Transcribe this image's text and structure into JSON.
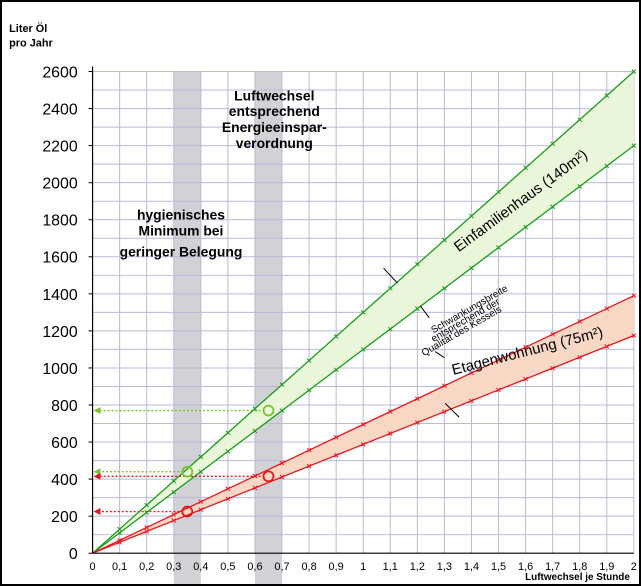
{
  "chart_data": {
    "type": "line",
    "ylabel": [
      "Liter Öl",
      "pro Jahr"
    ],
    "xlabel": "Luftwechsel je Stunde",
    "xlim": [
      0,
      2
    ],
    "ylim": [
      0,
      2600
    ],
    "xticks": [
      "0",
      "0,1",
      "0,2",
      "0,3",
      "0,4",
      "0,5",
      "0,6",
      "0,7",
      "0,8",
      "0,9",
      "1",
      "1,1",
      "1,2",
      "1,3",
      "1,4",
      "1,5",
      "1,6",
      "1,7",
      "1,8",
      "1,9",
      "2"
    ],
    "yticks": [
      "0",
      "200",
      "400",
      "600",
      "800",
      "1000",
      "1200",
      "1400",
      "1600",
      "1800",
      "2000",
      "2200",
      "2400",
      "2600"
    ],
    "grid": true,
    "shaded_bands": [
      {
        "x": [
          0.3,
          0.4
        ],
        "label": [
          "hygienisches",
          "Minimum bei",
          "geringer Belegung"
        ]
      },
      {
        "x": [
          0.6,
          0.7
        ],
        "label": [
          "Luftwechsel",
          "entsprechend",
          "Energieeinspar-",
          "verordnung"
        ]
      }
    ],
    "series": [
      {
        "name": "Einfamilienhaus (140m²)",
        "bound": "upper",
        "color": "#1a9a1a",
        "x": [
          0,
          2
        ],
        "y": [
          0,
          2600
        ]
      },
      {
        "name": "Einfamilienhaus (140m²)",
        "bound": "lower",
        "color": "#1a9a1a",
        "x": [
          0,
          2
        ],
        "y": [
          0,
          2200
        ]
      },
      {
        "name": "Etagenwohnung (75m²)",
        "bound": "upper",
        "color": "#e8141e",
        "x": [
          0,
          2
        ],
        "y": [
          0,
          1390
        ]
      },
      {
        "name": "Etagenwohnung (75m²)",
        "bound": "lower",
        "color": "#e8141e",
        "x": [
          0,
          2
        ],
        "y": [
          0,
          1175
        ]
      }
    ],
    "band_fills": {
      "Einfamilienhaus (140m²)": "#eaf6d9",
      "Etagenwohnung (75m²)": "#f8d8c4"
    },
    "series_labels": [
      "Einfamilienhaus (140m²)",
      "Etagenwohnung (75m²)"
    ],
    "annotation": [
      "Schwankungsbreite",
      "entsprechend der",
      "Qualität des Kessels"
    ],
    "markers": [
      {
        "x": 0.35,
        "y": 440,
        "color": "#7cc22a"
      },
      {
        "x": 0.65,
        "y": 770,
        "color": "#7cc22a"
      },
      {
        "x": 0.35,
        "y": 225,
        "color": "#e8141e"
      },
      {
        "x": 0.65,
        "y": 415,
        "color": "#e8141e"
      }
    ],
    "readoff_lines": [
      {
        "x_from": 0.65,
        "y": 770,
        "color": "#7cc22a"
      },
      {
        "x_from": 0.35,
        "y": 440,
        "color": "#7cc22a"
      },
      {
        "x_from": 0.65,
        "y": 415,
        "color": "#e8141e"
      },
      {
        "x_from": 0.35,
        "y": 225,
        "color": "#e8141e"
      }
    ]
  }
}
